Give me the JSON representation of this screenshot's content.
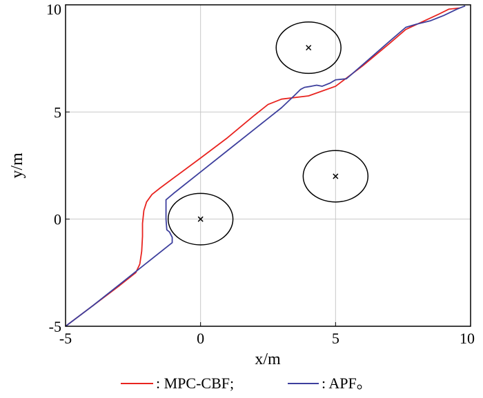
{
  "chart_data": {
    "type": "line",
    "title": "",
    "xlabel": "x/m",
    "ylabel": "y/m",
    "xlim": [
      -5,
      10
    ],
    "ylim": [
      -5,
      10
    ],
    "x_ticks": [
      "-5",
      "0",
      "5",
      "10"
    ],
    "y_ticks": [
      "-5",
      "0",
      "5",
      "10"
    ],
    "grid": true,
    "legend_placement": "bottom",
    "legend_text": {
      "mpc": ": MPC-CBF;",
      "apf": ": APF。"
    },
    "series": [
      {
        "name": "MPC-CBF",
        "color": "#e8231f",
        "points": [
          [
            -5,
            -5
          ],
          [
            -4,
            -4.05
          ],
          [
            -3,
            -3.1
          ],
          [
            -2.4,
            -2.5
          ],
          [
            -2.25,
            -2.1
          ],
          [
            -2.18,
            -1.5
          ],
          [
            -2.15,
            -0.8
          ],
          [
            -2.15,
            -0.2
          ],
          [
            -2.1,
            0.4
          ],
          [
            -2.0,
            0.8
          ],
          [
            -1.8,
            1.15
          ],
          [
            -1.5,
            1.45
          ],
          [
            0,
            2.85
          ],
          [
            1.0,
            3.8
          ],
          [
            2.0,
            4.85
          ],
          [
            2.5,
            5.35
          ],
          [
            3.0,
            5.6
          ],
          [
            4.0,
            5.75
          ],
          [
            5.0,
            6.2
          ],
          [
            6.0,
            7.15
          ],
          [
            7.0,
            8.2
          ],
          [
            7.6,
            8.85
          ],
          [
            8.2,
            9.2
          ],
          [
            8.8,
            9.55
          ],
          [
            9.2,
            9.8
          ],
          [
            9.6,
            9.85
          ]
        ]
      },
      {
        "name": "APF",
        "color": "#3d3f9d",
        "points": [
          [
            -5,
            -5
          ],
          [
            -4,
            -4.05
          ],
          [
            -3,
            -3.05
          ],
          [
            -2,
            -2.05
          ],
          [
            -1.05,
            -1.1
          ],
          [
            -1.05,
            -0.85
          ],
          [
            -1.15,
            -0.6
          ],
          [
            -1.25,
            -0.5
          ],
          [
            -1.28,
            0.0
          ],
          [
            -1.28,
            0.5
          ],
          [
            -1.28,
            0.9
          ],
          [
            -1.0,
            1.2
          ],
          [
            0,
            2.2
          ],
          [
            1.0,
            3.2
          ],
          [
            2.0,
            4.2
          ],
          [
            3.0,
            5.2
          ],
          [
            3.5,
            5.8
          ],
          [
            3.7,
            6.05
          ],
          [
            3.85,
            6.15
          ],
          [
            4.1,
            6.2
          ],
          [
            4.3,
            6.25
          ],
          [
            4.5,
            6.2
          ],
          [
            4.8,
            6.35
          ],
          [
            5.0,
            6.5
          ],
          [
            5.4,
            6.55
          ],
          [
            6.0,
            7.2
          ],
          [
            7.0,
            8.3
          ],
          [
            7.6,
            8.95
          ],
          [
            8.0,
            9.1
          ],
          [
            8.5,
            9.25
          ],
          [
            9.0,
            9.5
          ],
          [
            9.5,
            9.8
          ],
          [
            9.8,
            9.95
          ]
        ]
      }
    ],
    "obstacles": [
      {
        "center": [
          0,
          0
        ],
        "rx": 1.2,
        "ry": 1.2
      },
      {
        "center": [
          4,
          8
        ],
        "rx": 1.2,
        "ry": 1.2
      },
      {
        "center": [
          5,
          2
        ],
        "rx": 1.2,
        "ry": 1.2
      }
    ]
  }
}
